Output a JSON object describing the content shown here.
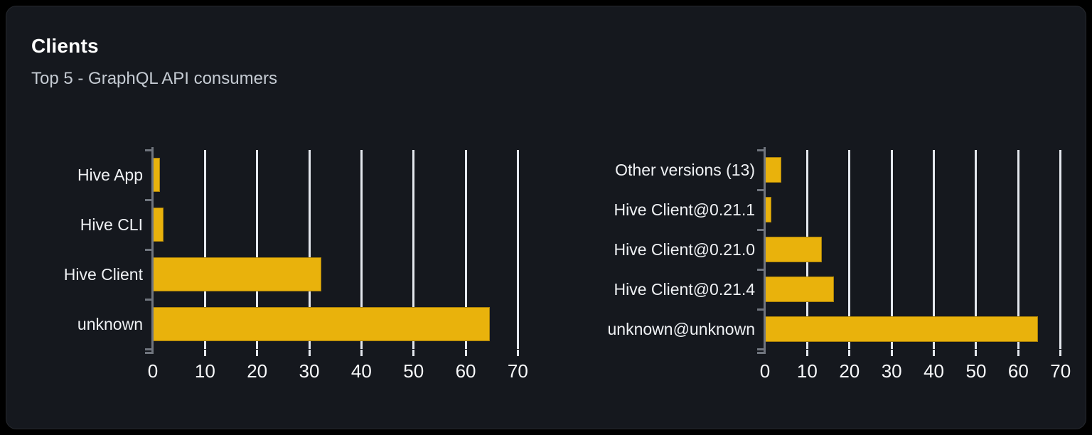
{
  "card": {
    "title": "Clients",
    "subtitle": "Top 5 - GraphQL API consumers"
  },
  "colors": {
    "page_background": "#000000",
    "card_background": "#15181e",
    "card_border": "#26292f",
    "bar": "#e9b20c",
    "gridline": "#e4e8ee",
    "axis": "#70757e",
    "title_text": "#ffffff",
    "subtitle_text": "#c5cbd3",
    "category_label_text": "#eff1f4",
    "tick_label_text": "#f8f9fb"
  },
  "chart_data": [
    {
      "type": "bar",
      "orientation": "horizontal",
      "title": "",
      "categories": [
        "Hive App",
        "Hive CLI",
        "Hive Client",
        "unknown"
      ],
      "values": [
        1.3,
        2,
        32.3,
        64.6
      ],
      "x_ticks": [
        0,
        10,
        20,
        30,
        40,
        50,
        60,
        70
      ],
      "xlim": [
        0,
        72.4
      ],
      "grid": true,
      "legend": false
    },
    {
      "type": "bar",
      "orientation": "horizontal",
      "title": "",
      "categories": [
        "Other versions (13)",
        "Hive Client@0.21.1",
        "Hive Client@0.21.0",
        "Hive Client@0.21.4",
        "unknown@unknown"
      ],
      "values": [
        3.8,
        1.5,
        13.5,
        16.3,
        64.6
      ],
      "x_ticks": [
        0,
        10,
        20,
        30,
        40,
        50,
        60,
        70
      ],
      "xlim": [
        0,
        72.4
      ],
      "grid": true,
      "legend": false
    }
  ]
}
